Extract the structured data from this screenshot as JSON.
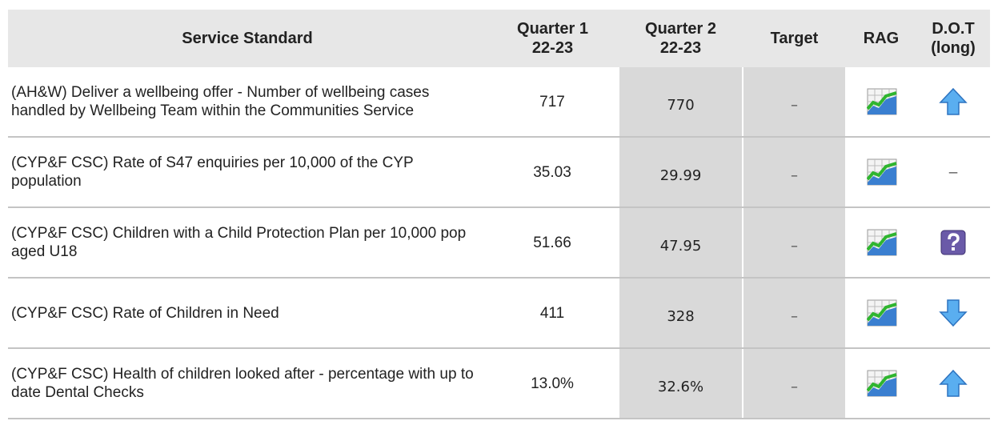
{
  "table": {
    "headers": [
      [
        "Service Standard"
      ],
      [
        "Quarter 1",
        "22-23"
      ],
      [
        "Quarter 2",
        "22-23"
      ],
      [
        "Target"
      ],
      [
        "RAG"
      ],
      [
        "D.O.T",
        "(long)"
      ]
    ],
    "rows": [
      {
        "standard": "(AH&W) Deliver a wellbeing offer - Number of wellbeing cases handled by Wellbeing Team within the Communities Service",
        "q1": "717",
        "q2": "770",
        "target": "–"
      },
      {
        "standard": "(CYP&F CSC) Rate of S47 enquiries per 10,000 of the CYP population",
        "q1": "35.03",
        "q2": "29.99",
        "target": "–",
        "dot": "–"
      },
      {
        "standard": "(CYP&F CSC) Children with a Child Protection Plan per 10,000 pop aged U18",
        "q1": "51.66",
        "q2": "47.95",
        "target": "–"
      },
      {
        "standard": "(CYP&F CSC) Rate of Children in Need",
        "q1": "411",
        "q2": "328",
        "target": "–"
      },
      {
        "standard": "(CYP&F CSC) Health of children looked after - percentage with up to date Dental Checks",
        "q1": "13.0%",
        "q2": "32.6%",
        "target": "–"
      }
    ]
  }
}
